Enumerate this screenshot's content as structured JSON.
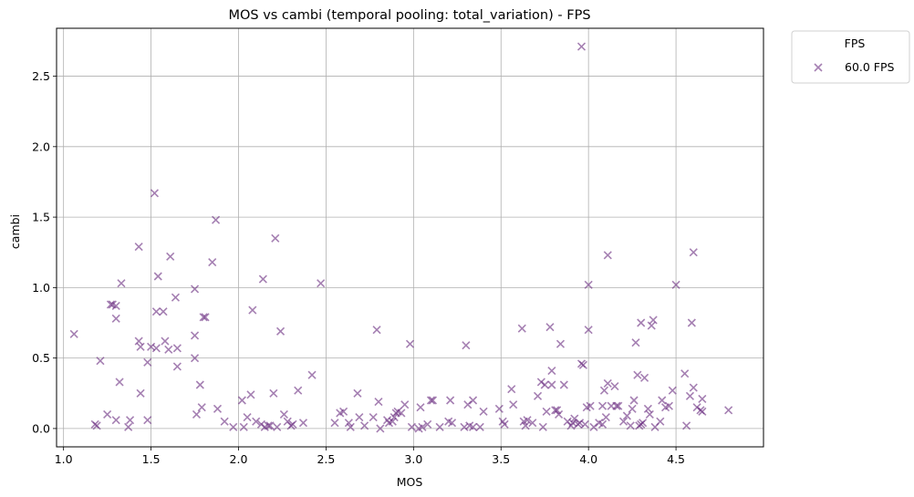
{
  "chart_data": {
    "type": "scatter",
    "title": "MOS vs cambi (temporal pooling: total_variation) - FPS",
    "xlabel": "MOS",
    "ylabel": "cambi",
    "xlim": [
      0.96,
      5.0
    ],
    "ylim": [
      -0.13,
      2.84
    ],
    "xticks": [
      1.0,
      1.5,
      2.0,
      2.5,
      3.0,
      3.5,
      4.0,
      4.5
    ],
    "xtick_labels": [
      "1.0",
      "1.5",
      "2.0",
      "2.5",
      "3.0",
      "3.5",
      "4.0",
      "4.5"
    ],
    "yticks": [
      0.0,
      0.5,
      1.0,
      1.5,
      2.0,
      2.5
    ],
    "ytick_labels": [
      "0.0",
      "0.5",
      "1.0",
      "1.5",
      "2.0",
      "2.5"
    ],
    "grid": true,
    "marker": "x",
    "legend": {
      "title": "FPS",
      "placement": "outside-top-right"
    },
    "series": [
      {
        "name": "60.0 FPS",
        "color": "#6a2c80",
        "points": [
          [
            1.06,
            0.67
          ],
          [
            1.18,
            0.03
          ],
          [
            1.19,
            0.02
          ],
          [
            1.21,
            0.48
          ],
          [
            1.25,
            0.1
          ],
          [
            1.27,
            0.88
          ],
          [
            1.28,
            0.88
          ],
          [
            1.3,
            0.78
          ],
          [
            1.3,
            0.87
          ],
          [
            1.3,
            0.06
          ],
          [
            1.32,
            0.33
          ],
          [
            1.33,
            1.03
          ],
          [
            1.37,
            0.01
          ],
          [
            1.38,
            0.06
          ],
          [
            1.43,
            1.29
          ],
          [
            1.43,
            0.62
          ],
          [
            1.44,
            0.58
          ],
          [
            1.44,
            0.25
          ],
          [
            1.48,
            0.47
          ],
          [
            1.48,
            0.06
          ],
          [
            1.5,
            0.58
          ],
          [
            1.52,
            1.67
          ],
          [
            1.53,
            0.57
          ],
          [
            1.53,
            0.83
          ],
          [
            1.54,
            1.08
          ],
          [
            1.57,
            0.83
          ],
          [
            1.58,
            0.62
          ],
          [
            1.6,
            0.56
          ],
          [
            1.61,
            1.22
          ],
          [
            1.64,
            0.93
          ],
          [
            1.65,
            0.57
          ],
          [
            1.65,
            0.44
          ],
          [
            1.75,
            0.99
          ],
          [
            1.75,
            0.66
          ],
          [
            1.75,
            0.5
          ],
          [
            1.76,
            0.1
          ],
          [
            1.78,
            0.31
          ],
          [
            1.79,
            0.15
          ],
          [
            1.8,
            0.79
          ],
          [
            1.81,
            0.79
          ],
          [
            1.85,
            1.18
          ],
          [
            1.87,
            1.48
          ],
          [
            1.88,
            0.14
          ],
          [
            1.92,
            0.05
          ],
          [
            1.97,
            0.01
          ],
          [
            2.02,
            0.2
          ],
          [
            2.03,
            0.01
          ],
          [
            2.05,
            0.08
          ],
          [
            2.07,
            0.24
          ],
          [
            2.08,
            0.84
          ],
          [
            2.1,
            0.05
          ],
          [
            2.13,
            0.03
          ],
          [
            2.14,
            1.06
          ],
          [
            2.15,
            0.01
          ],
          [
            2.17,
            0.02
          ],
          [
            2.18,
            0.02
          ],
          [
            2.2,
            0.25
          ],
          [
            2.21,
            1.35
          ],
          [
            2.22,
            0.01
          ],
          [
            2.24,
            0.69
          ],
          [
            2.26,
            0.1
          ],
          [
            2.28,
            0.05
          ],
          [
            2.3,
            0.02
          ],
          [
            2.31,
            0.03
          ],
          [
            2.34,
            0.27
          ],
          [
            2.37,
            0.04
          ],
          [
            2.42,
            0.38
          ],
          [
            2.47,
            1.03
          ],
          [
            2.55,
            0.04
          ],
          [
            2.58,
            0.11
          ],
          [
            2.6,
            0.12
          ],
          [
            2.63,
            0.04
          ],
          [
            2.64,
            0.01
          ],
          [
            2.68,
            0.25
          ],
          [
            2.69,
            0.08
          ],
          [
            2.72,
            0.02
          ],
          [
            2.77,
            0.08
          ],
          [
            2.79,
            0.7
          ],
          [
            2.8,
            0.19
          ],
          [
            2.81,
            0.0
          ],
          [
            2.85,
            0.06
          ],
          [
            2.86,
            0.04
          ],
          [
            2.88,
            0.05
          ],
          [
            2.89,
            0.08
          ],
          [
            2.9,
            0.11
          ],
          [
            2.91,
            0.12
          ],
          [
            2.93,
            0.11
          ],
          [
            2.95,
            0.17
          ],
          [
            2.98,
            0.6
          ],
          [
            2.99,
            0.01
          ],
          [
            3.03,
            0.0
          ],
          [
            3.04,
            0.15
          ],
          [
            3.05,
            0.01
          ],
          [
            3.08,
            0.03
          ],
          [
            3.1,
            0.2
          ],
          [
            3.11,
            0.2
          ],
          [
            3.15,
            0.01
          ],
          [
            3.2,
            0.05
          ],
          [
            3.21,
            0.2
          ],
          [
            3.22,
            0.04
          ],
          [
            3.29,
            0.01
          ],
          [
            3.3,
            0.59
          ],
          [
            3.31,
            0.17
          ],
          [
            3.32,
            0.02
          ],
          [
            3.34,
            0.01
          ],
          [
            3.34,
            0.2
          ],
          [
            3.38,
            0.01
          ],
          [
            3.4,
            0.12
          ],
          [
            3.49,
            0.14
          ],
          [
            3.51,
            0.05
          ],
          [
            3.52,
            0.03
          ],
          [
            3.56,
            0.28
          ],
          [
            3.57,
            0.17
          ],
          [
            3.62,
            0.71
          ],
          [
            3.63,
            0.05
          ],
          [
            3.64,
            0.02
          ],
          [
            3.65,
            0.06
          ],
          [
            3.68,
            0.04
          ],
          [
            3.71,
            0.23
          ],
          [
            3.73,
            0.33
          ],
          [
            3.74,
            0.01
          ],
          [
            3.75,
            0.31
          ],
          [
            3.76,
            0.12
          ],
          [
            3.78,
            0.72
          ],
          [
            3.79,
            0.31
          ],
          [
            3.79,
            0.41
          ],
          [
            3.81,
            0.13
          ],
          [
            3.82,
            0.13
          ],
          [
            3.83,
            0.1
          ],
          [
            3.84,
            0.6
          ],
          [
            3.86,
            0.31
          ],
          [
            3.88,
            0.05
          ],
          [
            3.9,
            0.02
          ],
          [
            3.91,
            0.04
          ],
          [
            3.92,
            0.07
          ],
          [
            3.94,
            0.03
          ],
          [
            3.95,
            0.04
          ],
          [
            3.96,
            2.71
          ],
          [
            3.96,
            0.46
          ],
          [
            3.97,
            0.45
          ],
          [
            3.98,
            0.03
          ],
          [
            3.99,
            0.15
          ],
          [
            4.0,
            1.02
          ],
          [
            4.0,
            0.7
          ],
          [
            4.01,
            0.16
          ],
          [
            4.03,
            0.01
          ],
          [
            4.06,
            0.04
          ],
          [
            4.08,
            0.03
          ],
          [
            4.08,
            0.16
          ],
          [
            4.09,
            0.27
          ],
          [
            4.1,
            0.08
          ],
          [
            4.11,
            0.32
          ],
          [
            4.11,
            1.23
          ],
          [
            4.13,
            0.16
          ],
          [
            4.15,
            0.3
          ],
          [
            4.16,
            0.16
          ],
          [
            4.17,
            0.16
          ],
          [
            4.2,
            0.05
          ],
          [
            4.22,
            0.09
          ],
          [
            4.24,
            0.02
          ],
          [
            4.25,
            0.14
          ],
          [
            4.26,
            0.2
          ],
          [
            4.27,
            0.61
          ],
          [
            4.28,
            0.38
          ],
          [
            4.29,
            0.02
          ],
          [
            4.3,
            0.75
          ],
          [
            4.3,
            0.03
          ],
          [
            4.31,
            0.04
          ],
          [
            4.32,
            0.36
          ],
          [
            4.34,
            0.14
          ],
          [
            4.35,
            0.1
          ],
          [
            4.36,
            0.73
          ],
          [
            4.37,
            0.77
          ],
          [
            4.38,
            0.01
          ],
          [
            4.41,
            0.05
          ],
          [
            4.42,
            0.2
          ],
          [
            4.44,
            0.15
          ],
          [
            4.46,
            0.16
          ],
          [
            4.48,
            0.27
          ],
          [
            4.5,
            1.02
          ],
          [
            4.55,
            0.39
          ],
          [
            4.56,
            0.02
          ],
          [
            4.58,
            0.23
          ],
          [
            4.59,
            0.75
          ],
          [
            4.6,
            1.25
          ],
          [
            4.6,
            0.29
          ],
          [
            4.62,
            0.15
          ],
          [
            4.64,
            0.13
          ],
          [
            4.65,
            0.21
          ],
          [
            4.65,
            0.12
          ],
          [
            4.8,
            0.13
          ]
        ]
      }
    ]
  }
}
